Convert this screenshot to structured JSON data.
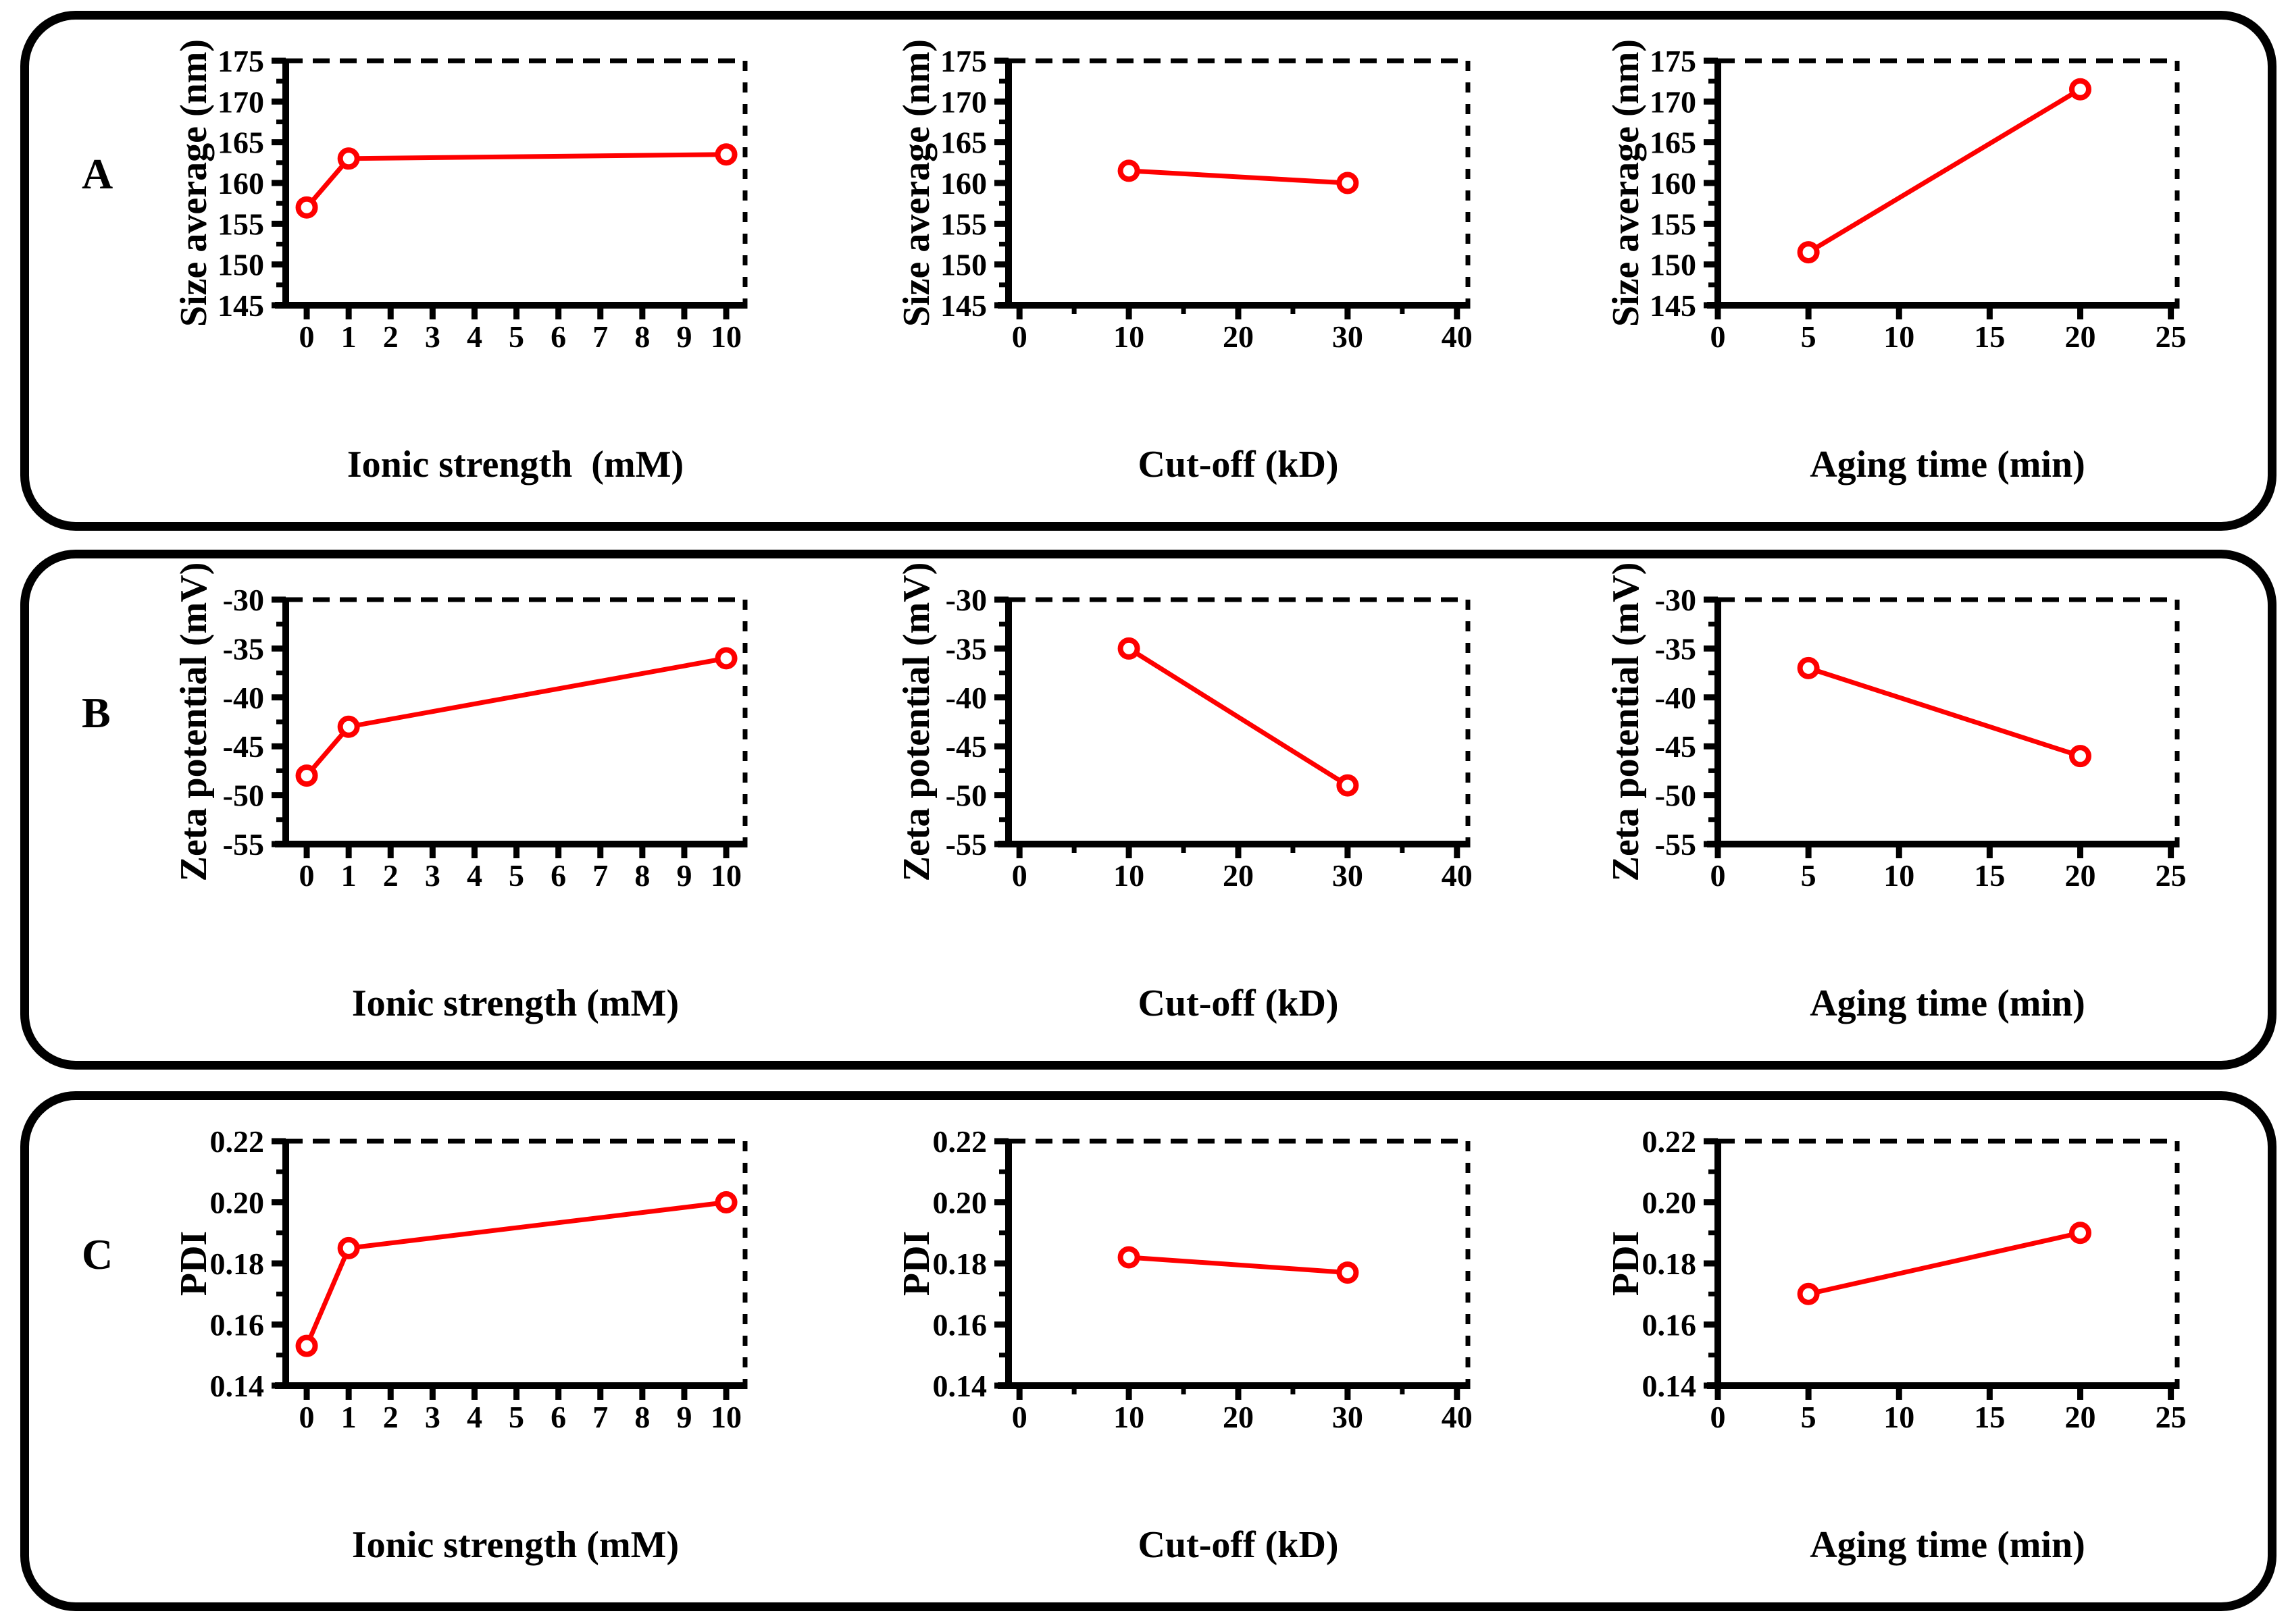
{
  "panels": [
    {
      "label": "A"
    },
    {
      "label": "B"
    },
    {
      "label": "C"
    }
  ],
  "colors": {
    "series": "#FE0000",
    "axis": "#000000",
    "background": "#FFFFFF"
  },
  "marker": {
    "shape": "open-circle",
    "color": "#FE0000"
  },
  "chart_data": [
    {
      "type": "line",
      "name": "size-vs-ionic-strength",
      "panel_index": 0,
      "col": 0,
      "ylabel": "Size average (nm)",
      "xlabel": "Ionic strength  (mM)",
      "ylim": [
        145,
        175
      ],
      "yticks": [
        145,
        150,
        155,
        160,
        165,
        170,
        175
      ],
      "ytick_labels": [
        "145",
        "150",
        "155",
        "160",
        "165",
        "170",
        "175"
      ],
      "xlim": [
        -0.5,
        10.45
      ],
      "xticks": [
        0,
        1,
        2,
        3,
        4,
        5,
        6,
        7,
        8,
        9,
        10
      ],
      "xtick_labels": [
        "0",
        "1",
        "2",
        "3",
        "4",
        "5",
        "6",
        "7",
        "8",
        "9",
        "10"
      ],
      "xminor": [],
      "x": [
        0,
        1,
        10
      ],
      "y": [
        157,
        163,
        163.5
      ],
      "grid": false,
      "legend": "none"
    },
    {
      "type": "line",
      "name": "size-vs-cutoff",
      "panel_index": 0,
      "col": 1,
      "ylabel": "Size average (nm)",
      "xlabel": "Cut-off (kD)",
      "ylim": [
        145,
        175
      ],
      "yticks": [
        145,
        150,
        155,
        160,
        165,
        170,
        175
      ],
      "ytick_labels": [
        "145",
        "150",
        "155",
        "160",
        "165",
        "170",
        "175"
      ],
      "xlim": [
        -1,
        41
      ],
      "xticks": [
        0,
        10,
        20,
        30,
        40
      ],
      "xtick_labels": [
        "0",
        "10",
        "20",
        "30",
        "40"
      ],
      "xminor": [
        5,
        15,
        25,
        35
      ],
      "x": [
        10,
        30
      ],
      "y": [
        161.5,
        160
      ],
      "grid": false,
      "legend": "none"
    },
    {
      "type": "line",
      "name": "size-vs-aging-time",
      "panel_index": 0,
      "col": 2,
      "ylabel": "Size average (nm)",
      "xlabel": "Aging time (min)",
      "ylim": [
        145,
        175
      ],
      "yticks": [
        145,
        150,
        155,
        160,
        165,
        170,
        175
      ],
      "ytick_labels": [
        "145",
        "150",
        "155",
        "160",
        "165",
        "170",
        "175"
      ],
      "xlim": [
        0,
        25.35
      ],
      "xticks": [
        0,
        5,
        10,
        15,
        20,
        25
      ],
      "xtick_labels": [
        "0",
        "5",
        "10",
        "15",
        "20",
        "25"
      ],
      "xminor": [],
      "x": [
        5,
        20
      ],
      "y": [
        151.5,
        171.5
      ],
      "grid": false,
      "legend": "none"
    },
    {
      "type": "line",
      "name": "zeta-vs-ionic-strength",
      "panel_index": 1,
      "col": 0,
      "ylabel": "Zeta potential (mV)",
      "xlabel": "Ionic strength (mM)",
      "ylim": [
        -55,
        -30
      ],
      "yticks": [
        -55,
        -50,
        -45,
        -40,
        -35,
        -30
      ],
      "ytick_labels": [
        "-55",
        "-50",
        "-45",
        "-40",
        "-35",
        "-30"
      ],
      "xlim": [
        -0.5,
        10.45
      ],
      "xticks": [
        0,
        1,
        2,
        3,
        4,
        5,
        6,
        7,
        8,
        9,
        10
      ],
      "xtick_labels": [
        "0",
        "1",
        "2",
        "3",
        "4",
        "5",
        "6",
        "7",
        "8",
        "9",
        "10"
      ],
      "xminor": [],
      "x": [
        0,
        1,
        10
      ],
      "y": [
        -48,
        -43,
        -36
      ],
      "grid": false,
      "legend": "none"
    },
    {
      "type": "line",
      "name": "zeta-vs-cutoff",
      "panel_index": 1,
      "col": 1,
      "ylabel": "Zeta potential (mV)",
      "xlabel": "Cut-off (kD)",
      "ylim": [
        -55,
        -30
      ],
      "yticks": [
        -55,
        -50,
        -45,
        -40,
        -35,
        -30
      ],
      "ytick_labels": [
        "-55",
        "-50",
        "-45",
        "-40",
        "-35",
        "-30"
      ],
      "xlim": [
        -1,
        41
      ],
      "xticks": [
        0,
        10,
        20,
        30,
        40
      ],
      "xtick_labels": [
        "0",
        "10",
        "20",
        "30",
        "40"
      ],
      "xminor": [
        5,
        15,
        25,
        35
      ],
      "x": [
        10,
        30
      ],
      "y": [
        -35,
        -49
      ],
      "grid": false,
      "legend": "none"
    },
    {
      "type": "line",
      "name": "zeta-vs-aging-time",
      "panel_index": 1,
      "col": 2,
      "ylabel": "Zeta potential (mV)",
      "xlabel": "Aging time (min)",
      "ylim": [
        -55,
        -30
      ],
      "yticks": [
        -55,
        -50,
        -45,
        -40,
        -35,
        -30
      ],
      "ytick_labels": [
        "-55",
        "-50",
        "-45",
        "-40",
        "-35",
        "-30"
      ],
      "xlim": [
        0,
        25.35
      ],
      "xticks": [
        0,
        5,
        10,
        15,
        20,
        25
      ],
      "xtick_labels": [
        "0",
        "5",
        "10",
        "15",
        "20",
        "25"
      ],
      "xminor": [],
      "x": [
        5,
        20
      ],
      "y": [
        -37,
        -46
      ],
      "grid": false,
      "legend": "none"
    },
    {
      "type": "line",
      "name": "pdi-vs-ionic-strength",
      "panel_index": 2,
      "col": 0,
      "ylabel": "PDI",
      "xlabel": "Ionic strength (mM)",
      "ylim": [
        0.14,
        0.22
      ],
      "yticks": [
        0.14,
        0.16,
        0.18,
        0.2,
        0.22
      ],
      "ytick_labels": [
        "0.14",
        "0.16",
        "0.18",
        "0.20",
        "0.22"
      ],
      "xlim": [
        -0.5,
        10.45
      ],
      "xticks": [
        0,
        1,
        2,
        3,
        4,
        5,
        6,
        7,
        8,
        9,
        10
      ],
      "xtick_labels": [
        "0",
        "1",
        "2",
        "3",
        "4",
        "5",
        "6",
        "7",
        "8",
        "9",
        "10"
      ],
      "xminor": [],
      "x": [
        0,
        1,
        10
      ],
      "y": [
        0.153,
        0.185,
        0.2
      ],
      "grid": false,
      "legend": "none"
    },
    {
      "type": "line",
      "name": "pdi-vs-cutoff",
      "panel_index": 2,
      "col": 1,
      "ylabel": "PDI",
      "xlabel": "Cut-off (kD)",
      "ylim": [
        0.14,
        0.22
      ],
      "yticks": [
        0.14,
        0.16,
        0.18,
        0.2,
        0.22
      ],
      "ytick_labels": [
        "0.14",
        "0.16",
        "0.18",
        "0.20",
        "0.22"
      ],
      "xlim": [
        -1,
        41
      ],
      "xticks": [
        0,
        10,
        20,
        30,
        40
      ],
      "xtick_labels": [
        "0",
        "10",
        "20",
        "30",
        "40"
      ],
      "xminor": [
        5,
        15,
        25,
        35
      ],
      "x": [
        10,
        30
      ],
      "y": [
        0.182,
        0.177
      ],
      "grid": false,
      "legend": "none"
    },
    {
      "type": "line",
      "name": "pdi-vs-aging-time",
      "panel_index": 2,
      "col": 2,
      "ylabel": "PDI",
      "xlabel": "Aging time (min)",
      "ylim": [
        0.14,
        0.22
      ],
      "yticks": [
        0.14,
        0.16,
        0.18,
        0.2,
        0.22
      ],
      "ytick_labels": [
        "0.14",
        "0.16",
        "0.18",
        "0.20",
        "0.22"
      ],
      "xlim": [
        0,
        25.35
      ],
      "xticks": [
        0,
        5,
        10,
        15,
        20,
        25
      ],
      "xtick_labels": [
        "0",
        "5",
        "10",
        "15",
        "20",
        "25"
      ],
      "xminor": [],
      "x": [
        5,
        20
      ],
      "y": [
        0.17,
        0.19
      ],
      "grid": false,
      "legend": "none"
    }
  ]
}
